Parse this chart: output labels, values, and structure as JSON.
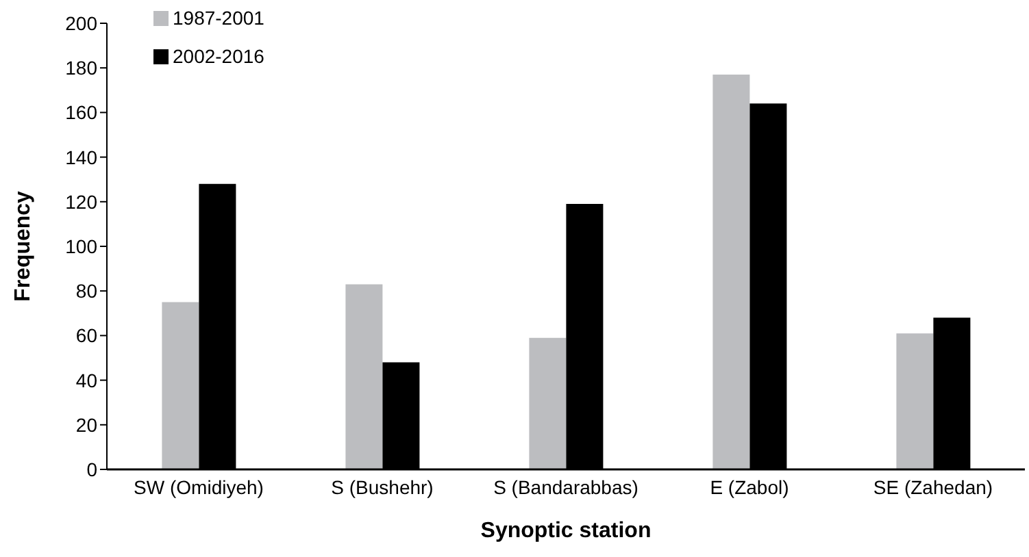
{
  "chart_data": {
    "type": "bar",
    "xlabel": "Synoptic station",
    "ylabel": "Frequency",
    "categories": [
      "SW (Omidiyeh)",
      "S (Bushehr)",
      "S (Bandarabbas)",
      "E (Zabol)",
      "SE (Zahedan)"
    ],
    "series": [
      {
        "name": "1987-2001",
        "color": "#bcbdc0",
        "values": [
          75,
          83,
          59,
          177,
          61
        ]
      },
      {
        "name": "2002-2016",
        "color": "#000000",
        "values": [
          128,
          48,
          119,
          164,
          68
        ]
      }
    ],
    "ylim": [
      0,
      200
    ],
    "yticks": [
      0,
      20,
      40,
      60,
      80,
      100,
      120,
      140,
      160,
      180,
      200
    ],
    "grid": false,
    "legend": "top left"
  }
}
